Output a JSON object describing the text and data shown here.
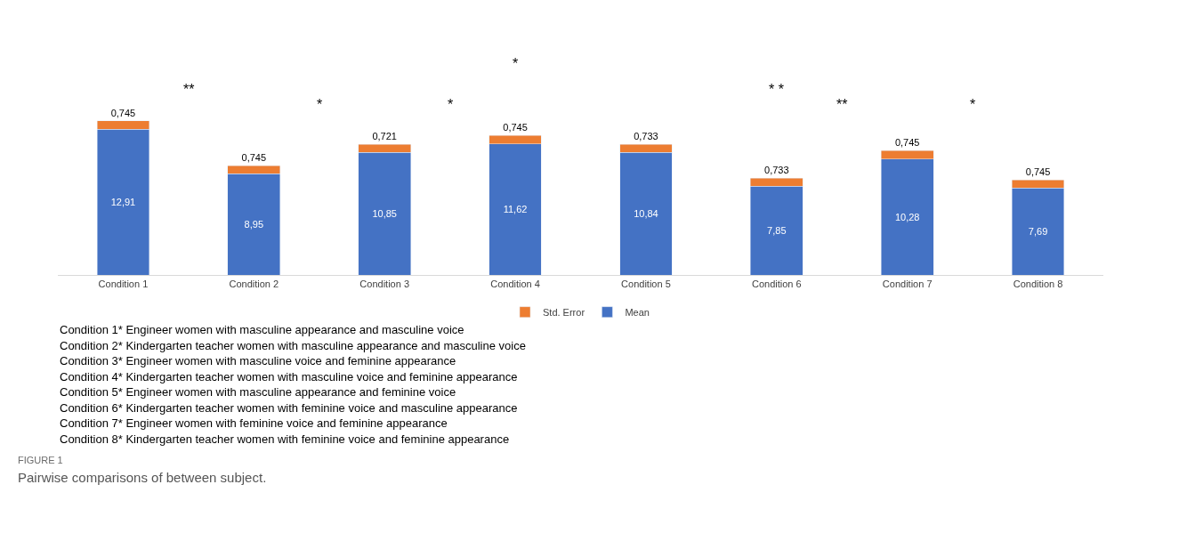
{
  "chart_data": {
    "type": "bar",
    "stacked": true,
    "categories": [
      "Condition 1",
      "Condition 2",
      "Condition 3",
      "Condition 4",
      "Condition 5",
      "Condition 6",
      "Condition 7",
      "Condition 8"
    ],
    "series": [
      {
        "name": "Mean",
        "color": "#4472c4",
        "values": [
          12.91,
          8.95,
          10.85,
          11.62,
          10.84,
          7.85,
          10.28,
          7.69
        ],
        "value_labels": [
          "12,91",
          "8,95",
          "10,85",
          "11,62",
          "10,84",
          "7,85",
          "10,28",
          "7,69"
        ]
      },
      {
        "name": "Std. Error",
        "color": "#ed7d31",
        "values": [
          0.745,
          0.745,
          0.721,
          0.745,
          0.733,
          0.733,
          0.745,
          0.745
        ],
        "value_labels": [
          "0,745",
          "0,745",
          "0,721",
          "0,745",
          "0,733",
          "0,733",
          "0,745",
          "0,745"
        ]
      }
    ],
    "legend": "bottom",
    "tick_labels": "x",
    "annotations": [
      "*",
      "**",
      "*",
      "*",
      "* *",
      "**",
      "*",
      "Condition 1* Engineer women with masculine appearance and masculine voice",
      "Condition 2* Kindergarten teacher women with masculine appearance and masculine voice",
      "Condition 3* Engineer women with masculine voice and feminine appearance",
      "Condition 4* Kindergarten teacher women with masculine voice and feminine appearance",
      "Condition 5* Engineer women with masculine appearance and feminine voice",
      "Condition 6* Kindergarten teacher women with feminine voice and masculine appearance",
      "Condition 7* Engineer women with feminine voice and feminine appearance",
      "Condition 8* Kindergarten teacher women with feminine voice and feminine appearance",
      "FIGURE 1",
      "Pairwise comparisons of between subject."
    ]
  }
}
